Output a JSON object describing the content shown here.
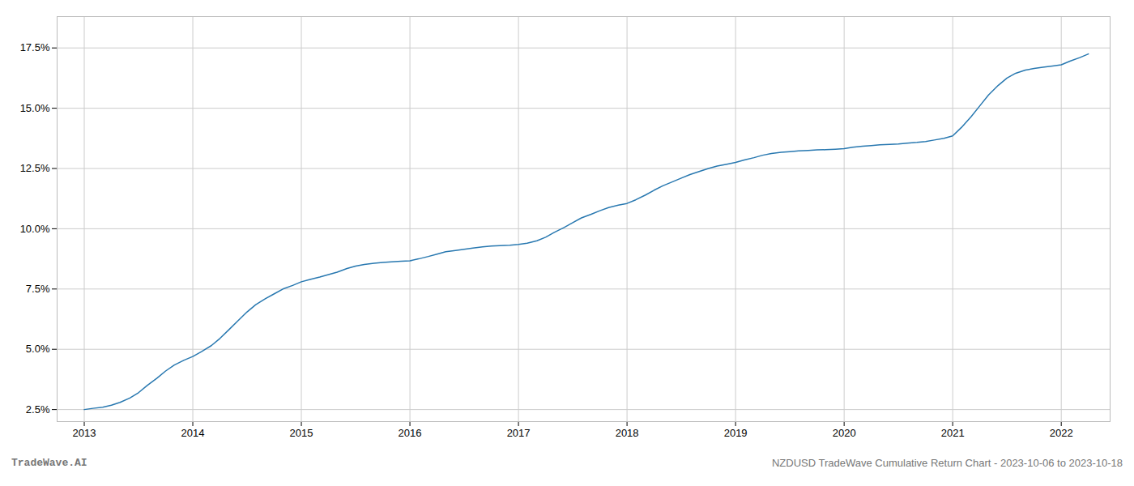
{
  "chart_data": {
    "type": "line",
    "x": [
      2013.0,
      2013.08,
      2013.17,
      2013.25,
      2013.33,
      2013.42,
      2013.5,
      2013.58,
      2013.67,
      2013.75,
      2013.83,
      2013.92,
      2014.0,
      2014.08,
      2014.17,
      2014.25,
      2014.33,
      2014.42,
      2014.5,
      2014.58,
      2014.67,
      2014.75,
      2014.83,
      2014.92,
      2015.0,
      2015.08,
      2015.17,
      2015.25,
      2015.33,
      2015.42,
      2015.5,
      2015.58,
      2015.67,
      2015.75,
      2015.83,
      2015.92,
      2016.0,
      2016.08,
      2016.17,
      2016.25,
      2016.33,
      2016.42,
      2016.5,
      2016.58,
      2016.67,
      2016.75,
      2016.83,
      2016.92,
      2017.0,
      2017.08,
      2017.17,
      2017.25,
      2017.33,
      2017.42,
      2017.5,
      2017.58,
      2017.67,
      2017.75,
      2017.83,
      2017.92,
      2018.0,
      2018.08,
      2018.17,
      2018.25,
      2018.33,
      2018.42,
      2018.5,
      2018.58,
      2018.67,
      2018.75,
      2018.83,
      2018.92,
      2019.0,
      2019.08,
      2019.17,
      2019.25,
      2019.33,
      2019.42,
      2019.5,
      2019.58,
      2019.67,
      2019.75,
      2019.83,
      2019.92,
      2020.0,
      2020.08,
      2020.17,
      2020.25,
      2020.33,
      2020.42,
      2020.5,
      2020.58,
      2020.67,
      2020.75,
      2020.83,
      2020.92,
      2021.0,
      2021.08,
      2021.17,
      2021.25,
      2021.33,
      2021.42,
      2021.5,
      2021.58,
      2021.67,
      2021.75,
      2021.83,
      2021.92,
      2022.0,
      2022.08,
      2022.17,
      2022.25
    ],
    "values": [
      2.5,
      2.55,
      2.6,
      2.68,
      2.8,
      2.98,
      3.2,
      3.5,
      3.8,
      4.1,
      4.35,
      4.55,
      4.7,
      4.9,
      5.15,
      5.45,
      5.8,
      6.2,
      6.55,
      6.85,
      7.1,
      7.3,
      7.5,
      7.65,
      7.8,
      7.9,
      8.0,
      8.1,
      8.2,
      8.35,
      8.45,
      8.52,
      8.57,
      8.6,
      8.63,
      8.65,
      8.67,
      8.75,
      8.85,
      8.95,
      9.05,
      9.1,
      9.15,
      9.2,
      9.25,
      9.28,
      9.3,
      9.32,
      9.35,
      9.4,
      9.5,
      9.65,
      9.85,
      10.05,
      10.25,
      10.45,
      10.6,
      10.75,
      10.88,
      10.98,
      11.05,
      11.2,
      11.4,
      11.6,
      11.78,
      11.95,
      12.1,
      12.25,
      12.38,
      12.5,
      12.6,
      12.68,
      12.75,
      12.85,
      12.95,
      13.05,
      13.12,
      13.17,
      13.2,
      13.23,
      13.25,
      13.27,
      13.28,
      13.3,
      13.32,
      13.38,
      13.42,
      13.45,
      13.48,
      13.5,
      13.52,
      13.55,
      13.58,
      13.62,
      13.68,
      13.75,
      13.85,
      14.2,
      14.65,
      15.1,
      15.55,
      15.95,
      16.25,
      16.45,
      16.58,
      16.65,
      16.7,
      16.75,
      16.8,
      16.95,
      17.1,
      17.25
    ],
    "color": "#2878b0",
    "xlim": [
      2012.75,
      2022.45
    ],
    "xticks": [
      2013,
      2014,
      2015,
      2016,
      2017,
      2018,
      2019,
      2020,
      2021,
      2022
    ],
    "ylim": [
      2.0,
      18.8
    ],
    "yticks": [
      {
        "value": 2.5,
        "label": "2.5%"
      },
      {
        "value": 5.0,
        "label": "5.0%"
      },
      {
        "value": 7.5,
        "label": "7.5%"
      },
      {
        "value": 10.0,
        "label": "10.0%"
      },
      {
        "value": 12.5,
        "label": "12.5%"
      },
      {
        "value": 15.0,
        "label": "15.0%"
      },
      {
        "value": 17.5,
        "label": "17.5%"
      }
    ],
    "grid": true,
    "annotations": [
      "TradeWave.AI",
      "NZDUSD TradeWave Cumulative Return Chart - 2023-10-06 to 2023-10-18"
    ]
  }
}
